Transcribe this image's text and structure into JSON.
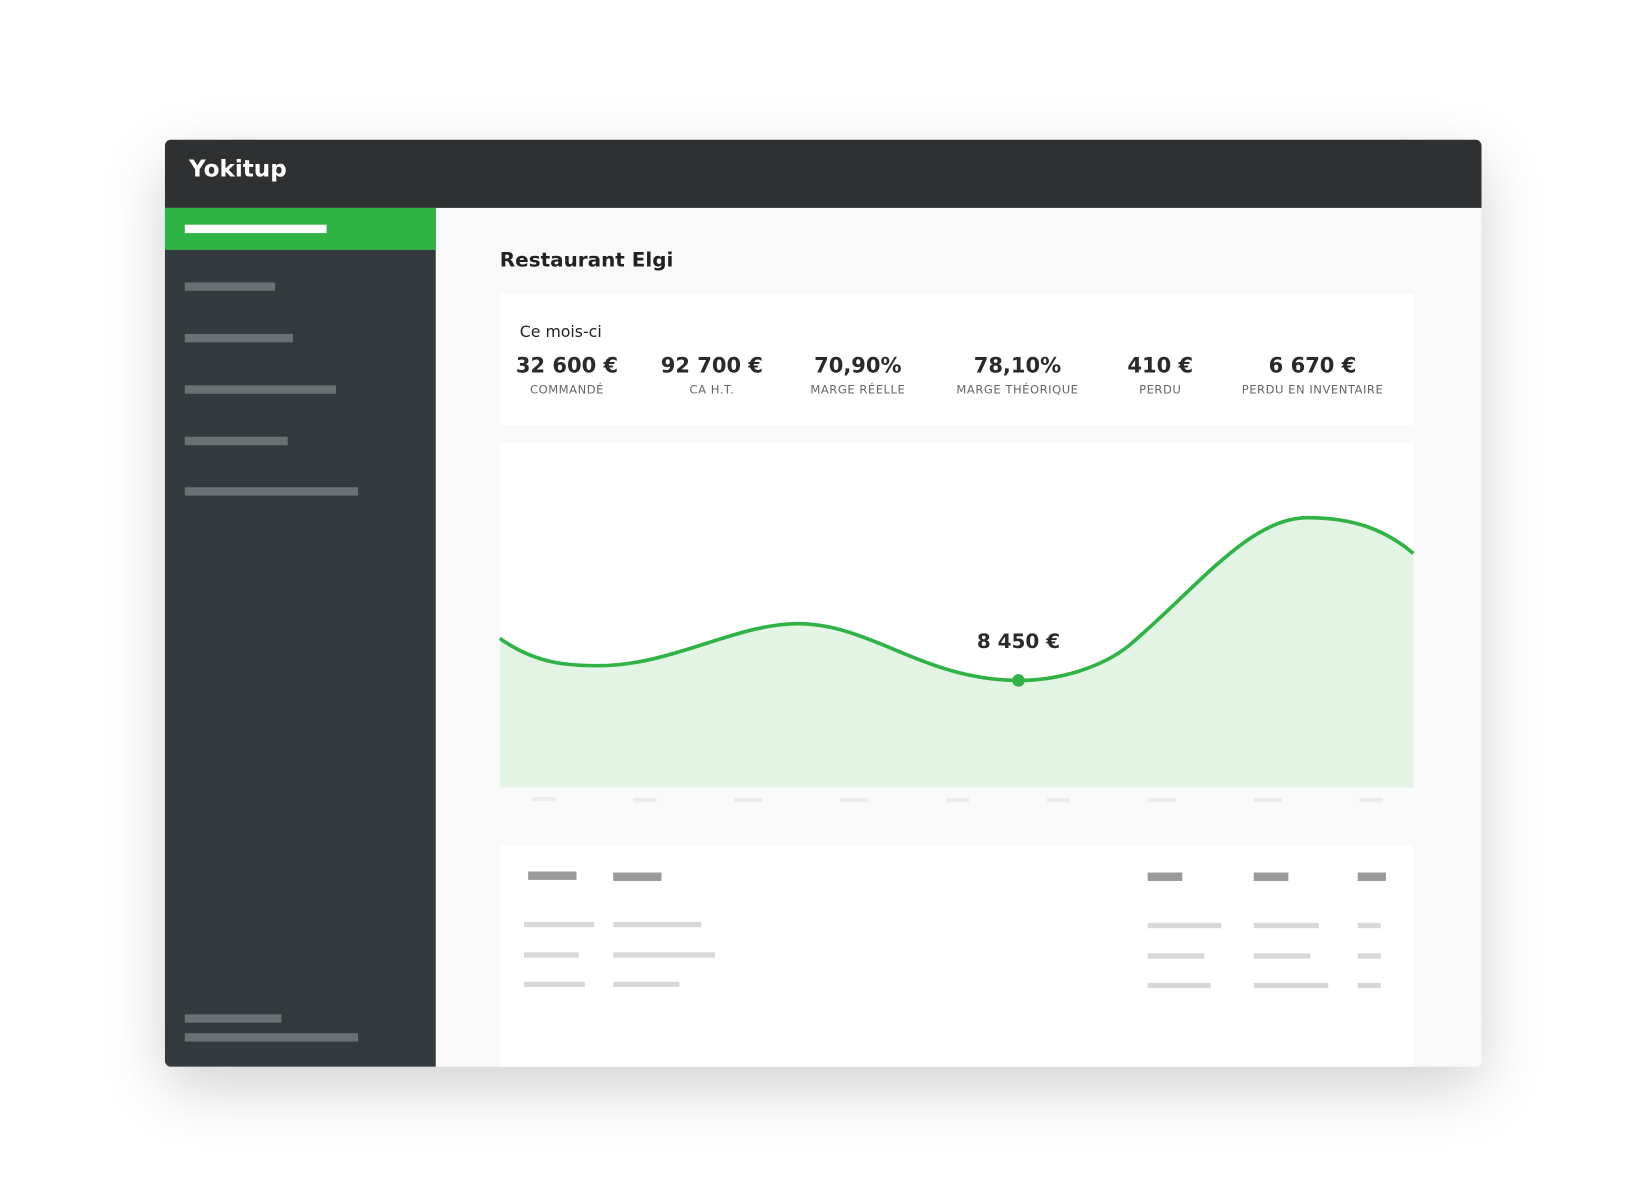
{
  "app": {
    "name": "Yokitup"
  },
  "page": {
    "title": "Restaurant Elgi"
  },
  "summary": {
    "period": "Ce mois-ci",
    "stats": [
      {
        "value": "32 600 €",
        "label": "COMMANDÉ"
      },
      {
        "value": "92 700 €",
        "label": "CA H.T."
      },
      {
        "value": "70,90%",
        "label": "MARGE RÉELLE"
      },
      {
        "value": "78,10%",
        "label": "MARGE THÉORIQUE"
      },
      {
        "value": "410 €",
        "label": "PERDU"
      },
      {
        "value": "6 670 €",
        "label": "PERDU EN INVENTAIRE"
      }
    ]
  },
  "chart": {
    "annotation": "8 450 €"
  }
}
